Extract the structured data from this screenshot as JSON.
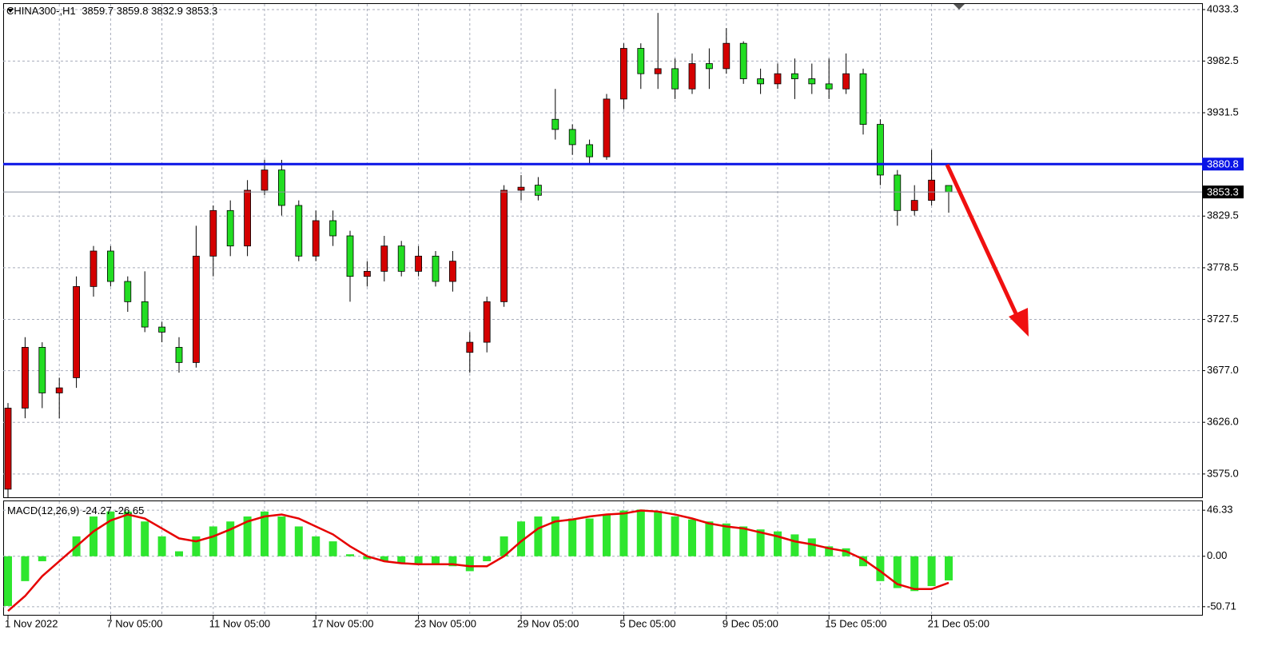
{
  "chart_data": [
    {
      "type": "candlestick",
      "symbol": "CHINA300-,H1",
      "categories": [
        "1 Nov 2022",
        null,
        null,
        null,
        null,
        null,
        "7 Nov 05:00",
        null,
        null,
        null,
        null,
        null,
        "11 Nov 05:00",
        null,
        null,
        null,
        null,
        null,
        "17 Nov 05:00",
        null,
        null,
        null,
        null,
        null,
        "23 Nov 05:00",
        null,
        null,
        null,
        null,
        null,
        "29 Nov 05:00",
        null,
        null,
        null,
        null,
        null,
        "5 Dec 05:00",
        null,
        null,
        null,
        null,
        null,
        "9 Dec 05:00",
        null,
        null,
        null,
        null,
        null,
        "15 Dec 05:00",
        null,
        null,
        null,
        null,
        null,
        "21 Dec 05:00",
        null
      ],
      "open": [
        3560,
        3640,
        3700,
        3655,
        3670,
        3760,
        3795,
        3765,
        3745,
        3720,
        3700,
        3685,
        3790,
        3835,
        3800,
        3855,
        3875,
        3840,
        3790,
        3825,
        3810,
        3770,
        3775,
        3800,
        3775,
        3790,
        3765,
        3695,
        3705,
        3745,
        3855,
        3860,
        3925,
        3915,
        3900,
        3888,
        3945,
        3995,
        3970,
        3975,
        3955,
        3980,
        3975,
        4000,
        3965,
        3960,
        3970,
        3965,
        3960,
        3955,
        3970,
        3920,
        3870,
        3835,
        3845,
        3859.7
      ],
      "high": [
        3645,
        3710,
        3705,
        3670,
        3770,
        3800,
        3800,
        3770,
        3775,
        3725,
        3710,
        3820,
        3840,
        3845,
        3865,
        3885,
        3885,
        3845,
        3835,
        3835,
        3815,
        3785,
        3810,
        3805,
        3800,
        3795,
        3795,
        3715,
        3750,
        3860,
        3870,
        3868,
        3955,
        3920,
        3905,
        3950,
        4000,
        4000,
        4030,
        3985,
        3990,
        3995,
        4015,
        4002,
        3975,
        3980,
        3985,
        3980,
        3985,
        3990,
        3975,
        3925,
        3875,
        3860,
        3895,
        3859.8
      ],
      "low": [
        3552,
        3630,
        3640,
        3630,
        3660,
        3750,
        3760,
        3735,
        3715,
        3705,
        3675,
        3680,
        3770,
        3790,
        3790,
        3850,
        3830,
        3785,
        3785,
        3800,
        3745,
        3760,
        3765,
        3770,
        3770,
        3760,
        3755,
        3675,
        3695,
        3740,
        3845,
        3845,
        3905,
        3890,
        3880,
        3885,
        3935,
        3955,
        3955,
        3945,
        3950,
        3955,
        3970,
        3960,
        3950,
        3955,
        3945,
        3950,
        3945,
        3950,
        3910,
        3860,
        3820,
        3830,
        3840,
        3832.9
      ],
      "close": [
        3640,
        3700,
        3655,
        3660,
        3760,
        3795,
        3765,
        3745,
        3720,
        3715,
        3685,
        3790,
        3835,
        3800,
        3855,
        3875,
        3840,
        3790,
        3825,
        3810,
        3770,
        3775,
        3800,
        3775,
        3790,
        3765,
        3785,
        3705,
        3745,
        3855,
        3858,
        3850,
        3915,
        3900,
        3888,
        3945,
        3995,
        3970,
        3975,
        3955,
        3980,
        3975,
        4000,
        3965,
        3960,
        3970,
        3965,
        3960,
        3955,
        3970,
        3920,
        3870,
        3835,
        3845,
        3865,
        3853.3
      ],
      "up_color": "#d40000",
      "down_color": "#22dd22",
      "ylim": [
        3552,
        4038.8
      ],
      "yticks": [
        4033.3,
        3982.5,
        3931.5,
        3880.8,
        3829.5,
        3778.5,
        3727.5,
        {
          "value": 3677,
          "label": "3677.0"
        },
        {
          "value": 3626,
          "label": "3626.0"
        },
        {
          "value": 3575,
          "label": "3575.0"
        }
      ],
      "level": 3880.8,
      "level_color": "#0a14e6",
      "grid": true
    },
    {
      "type": "macd",
      "name": "MACD(12,26,9)",
      "series": [
        {
          "name": "main",
          "color": "#2ee62e",
          "values": [
            -50,
            -25,
            -5,
            0,
            20,
            40,
            45,
            45,
            35,
            20,
            5,
            20,
            30,
            35,
            40,
            45,
            40,
            30,
            20,
            15,
            2,
            -3,
            -5,
            -7,
            -7,
            -8,
            -10,
            -15,
            -5,
            20,
            35,
            40,
            40,
            38,
            38,
            42,
            46,
            47,
            45,
            40,
            37,
            35,
            33,
            30,
            27,
            25,
            22,
            18,
            10,
            8,
            -10,
            -25,
            -32,
            -35,
            -30,
            -24.27
          ]
        },
        {
          "name": "signal",
          "color": "#e60000",
          "values": [
            -55,
            -40,
            -20,
            -5,
            10,
            25,
            36,
            42,
            38,
            28,
            18,
            15,
            20,
            27,
            35,
            40,
            42,
            38,
            30,
            22,
            10,
            0,
            -5,
            -7,
            -8,
            -8,
            -8,
            -10,
            -10,
            0,
            15,
            28,
            35,
            37,
            40,
            42,
            43,
            46,
            45,
            42,
            38,
            33,
            30,
            28,
            24,
            20,
            15,
            12,
            8,
            5,
            -3,
            -15,
            -28,
            -33,
            -33,
            -26.65
          ]
        }
      ],
      "ylim": [
        -59.7,
        55.3
      ],
      "yticks": [
        46.33,
        {
          "value": 0,
          "label": "0.00"
        },
        -50.71
      ]
    }
  ]
}
